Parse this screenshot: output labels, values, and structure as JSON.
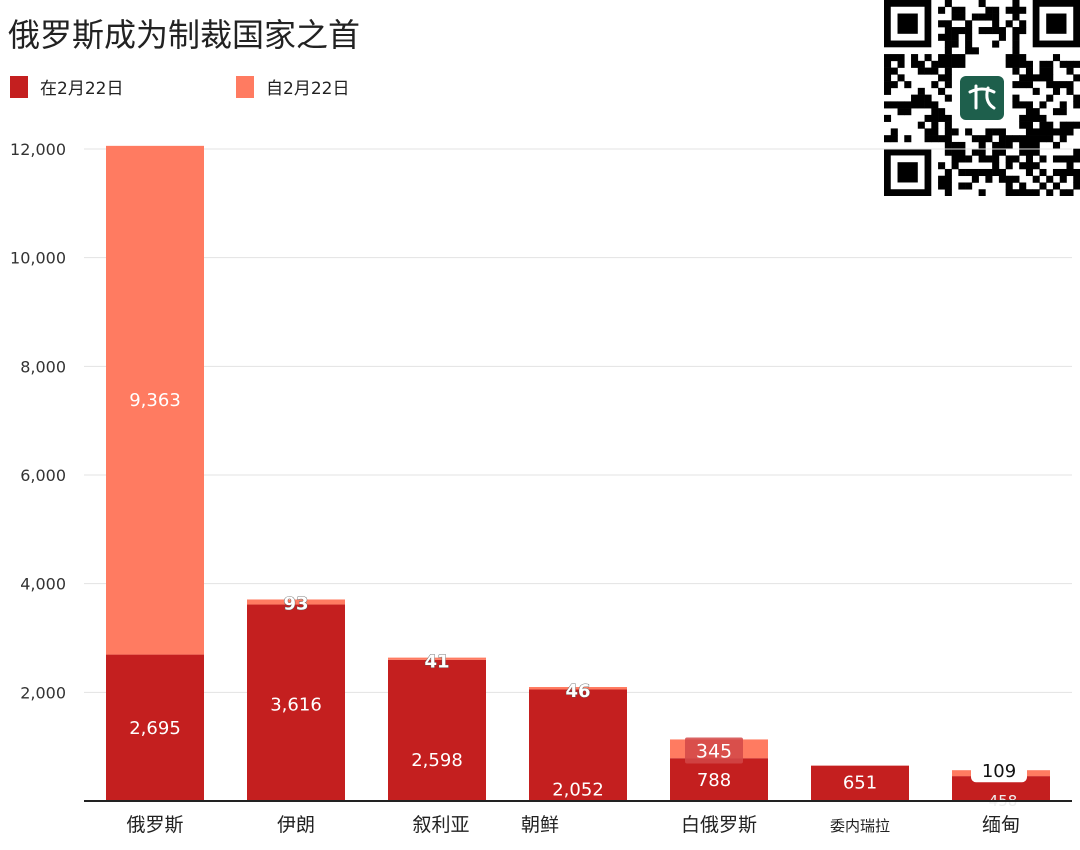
{
  "title": "俄罗斯成为制裁国家之首",
  "legend": [
    {
      "label": "在2月22日",
      "color": "#c41f1f"
    },
    {
      "label": "自2月22日",
      "color": "#ff7b61"
    }
  ],
  "chart_data": {
    "type": "bar",
    "stacked": true,
    "title": "俄罗斯成为制裁国家之首",
    "categories": [
      "俄罗斯",
      "伊朗",
      "叙利亚",
      "朝鲜",
      "白俄罗斯",
      "委内瑞拉",
      "缅甸"
    ],
    "series": [
      {
        "name": "在2月22日",
        "color": "#c41f1f",
        "values": [
          2695,
          3616,
          2598,
          2052,
          788,
          651,
          458
        ]
      },
      {
        "name": "自2月22日",
        "color": "#ff7b61",
        "values": [
          9363,
          93,
          41,
          46,
          345,
          0,
          109
        ]
      }
    ],
    "yticks": [
      "12,000",
      "10,000",
      "8,000",
      "6,000",
      "4,000",
      "2,000"
    ],
    "ylim": [
      0,
      12000
    ],
    "grid": true,
    "legend_position": "top-left"
  }
}
